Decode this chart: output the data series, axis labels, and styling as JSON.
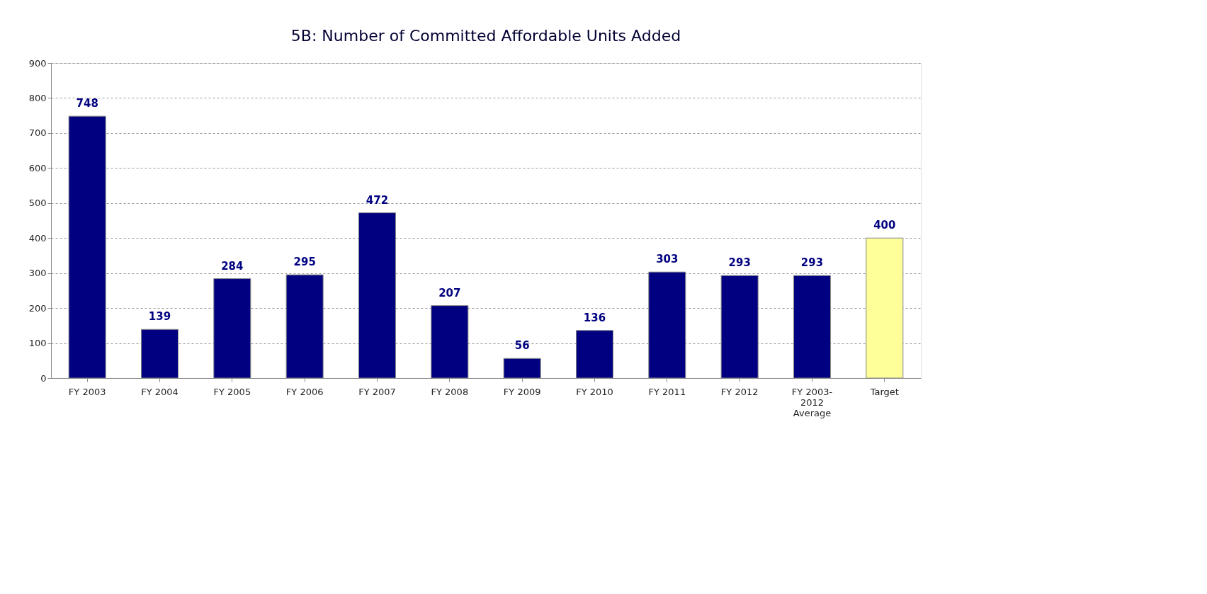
{
  "chart_data": {
    "type": "bar",
    "title": "5B: Number of Committed Affordable Units Added",
    "categories": [
      "FY 2003",
      "FY 2004",
      "FY 2005",
      "FY 2006",
      "FY 2007",
      "FY 2008",
      "FY 2009",
      "FY 2010",
      "FY 2011",
      "FY 2012",
      "FY 2003-\n2012\nAverage",
      "Target"
    ],
    "values": [
      748,
      139,
      284,
      295,
      472,
      207,
      56,
      136,
      303,
      293,
      293,
      400
    ],
    "colors": [
      "#000080",
      "#000080",
      "#000080",
      "#000080",
      "#000080",
      "#000080",
      "#000080",
      "#000080",
      "#000080",
      "#000080",
      "#000080",
      "#ffff99"
    ],
    "ylim": [
      0,
      900
    ],
    "yticks": [
      0,
      100,
      200,
      300,
      400,
      500,
      600,
      700,
      800,
      900
    ],
    "grid": "y",
    "data_labels": true
  }
}
